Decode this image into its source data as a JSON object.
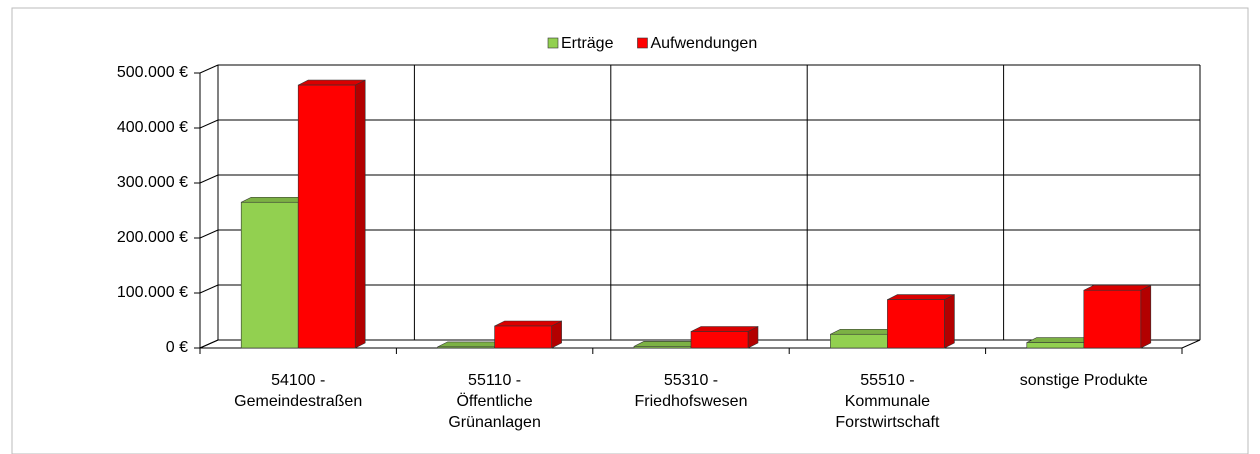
{
  "chart_data": {
    "type": "bar3d",
    "categories": [
      [
        "54100 -",
        "Gemeindestraßen"
      ],
      [
        "55110 -",
        "Öffentliche",
        "Grünanlagen"
      ],
      [
        "55310 -",
        "Friedhofswesen"
      ],
      [
        "55510 -",
        "Kommunale",
        "Forstwirtschaft"
      ],
      [
        "sonstige Produkte"
      ]
    ],
    "series": [
      {
        "name": "Erträge",
        "color": "#92d050",
        "values": [
          265000,
          2000,
          3000,
          25000,
          10000
        ]
      },
      {
        "name": "Aufwendungen",
        "color": "#ff0000",
        "values": [
          478000,
          40000,
          30000,
          88000,
          105000
        ]
      }
    ],
    "ylim": [
      0,
      500000
    ],
    "yticks": [
      {
        "value": 0,
        "label": "0 €"
      },
      {
        "value": 100000,
        "label": "100.000 €"
      },
      {
        "value": 200000,
        "label": "200.000 €"
      },
      {
        "value": 300000,
        "label": "300.000 €"
      },
      {
        "value": 400000,
        "label": "400.000 €"
      },
      {
        "value": 500000,
        "label": "500.000 €"
      }
    ],
    "grid": true,
    "legend": "top"
  }
}
